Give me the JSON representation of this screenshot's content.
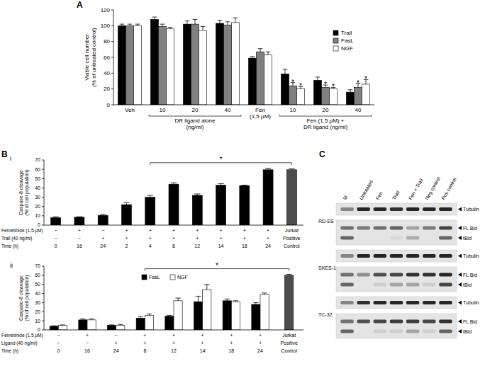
{
  "chart_data": [
    {
      "type": "bar",
      "panel": "A",
      "y_label": "Viable cell number\n(% of untreated control)",
      "categories": [
        "Veh",
        "10",
        "20",
        "40",
        "Fen\n(1.5 μM)",
        "10",
        "20",
        "40"
      ],
      "groups": [
        {
          "label": "DR ligand alone\n(ng/ml)",
          "from": 1,
          "to": 3
        },
        {
          "label": "Fen (1.5 μM) +\nDR ligand (ng/ml)",
          "from": 5,
          "to": 7
        }
      ],
      "series": [
        {
          "name": "Trail",
          "color": "#000000",
          "values": [
            100,
            108,
            102,
            103,
            59,
            39,
            31,
            16
          ],
          "errors": [
            2,
            3,
            4,
            4,
            2,
            6,
            4,
            3
          ]
        },
        {
          "name": "FasL",
          "color": "#808080",
          "values": [
            100,
            99,
            102,
            101,
            67,
            24,
            22,
            22
          ],
          "errors": [
            2,
            3,
            6,
            4,
            4,
            4,
            3,
            5
          ]
        },
        {
          "name": "NGF",
          "color": "#ffffff",
          "values": [
            100,
            96,
            94,
            104,
            63,
            20,
            20,
            26
          ],
          "errors": [
            2,
            2,
            5,
            6,
            4,
            3,
            2,
            6
          ]
        }
      ],
      "annotations": [
        {
          "text": "*",
          "category": 5,
          "series": 1
        },
        {
          "text": "*",
          "category": 5,
          "series": 2
        },
        {
          "text": "*",
          "category": 6,
          "series": 1
        },
        {
          "text": "*",
          "category": 6,
          "series": 2
        },
        {
          "text": "*",
          "category": 7,
          "series": 1
        },
        {
          "text": "*",
          "category": 7,
          "series": 2
        }
      ],
      "ylim": [
        0,
        120
      ],
      "yticks": [
        0,
        20,
        40,
        60,
        80,
        100,
        120
      ],
      "legend": "top-right"
    },
    {
      "type": "bar",
      "panel": "B",
      "subpanel": "i",
      "y_label": "Caspase-8 cleavage\n(% of cell population)",
      "values": [
        8,
        8.5,
        10.5,
        22,
        30,
        44,
        32,
        43,
        42.5,
        59.5,
        59.5
      ],
      "errors": [
        1,
        0.5,
        1,
        2,
        2,
        1.5,
        1.5,
        1.5,
        0.5,
        1.5,
        1
      ],
      "colors": [
        "#000000",
        "#000000",
        "#000000",
        "#000000",
        "#000000",
        "#000000",
        "#000000",
        "#000000",
        "#000000",
        "#000000",
        "#4d4d4d"
      ],
      "rows": [
        {
          "label": "Fenretinide (1.5 μM)",
          "cells": [
            "−",
            "+",
            "−",
            "+",
            "+",
            "+",
            "+",
            "+",
            "+",
            "+",
            "Jurkat"
          ]
        },
        {
          "label": "Trail (40 ng/ml)",
          "cells": [
            "−",
            "−",
            "+",
            "+",
            "+",
            "+",
            "+",
            "+",
            "+",
            "+",
            "Positive"
          ]
        },
        {
          "label": "Time (h)",
          "cells": [
            "0",
            "16",
            "24",
            "2",
            "4",
            "8",
            "12",
            "14",
            "18",
            "24",
            "Control"
          ]
        }
      ],
      "bracket": {
        "text": "*",
        "from": 4,
        "to": 10
      },
      "ylim": [
        0,
        70
      ],
      "yticks": [
        0,
        10,
        20,
        30,
        40,
        50,
        60,
        70
      ]
    },
    {
      "type": "bar",
      "subpanel": "ii",
      "y_label": "Caspase-8 cleavage\n(% of cell population)",
      "series": [
        {
          "name": "FasL",
          "color": "#000000",
          "values": [
            4,
            11,
            5,
            13,
            15,
            31,
            32,
            28,
            null
          ],
          "errors": [
            0.5,
            1,
            0.5,
            1.5,
            1,
            6,
            2,
            2,
            null
          ]
        },
        {
          "name": "NGF",
          "color": "#ffffff",
          "values": [
            5,
            11,
            5,
            16,
            32,
            44,
            31,
            39,
            null
          ],
          "errors": [
            0.5,
            1,
            1,
            1.5,
            3,
            6,
            1,
            1.5,
            null
          ]
        }
      ],
      "control": {
        "value": 60,
        "error": 1,
        "color": "#4d4d4d"
      },
      "rows": [
        {
          "label": "Fenretinide (1.5 μM)",
          "cells": [
            "−",
            "+",
            "−",
            "+",
            "+",
            "+",
            "+",
            "+",
            "Jurkat"
          ]
        },
        {
          "label": "Ligand (40 ng/ml)",
          "cells": [
            "−",
            "−",
            "+",
            "+",
            "+",
            "+",
            "+",
            "+",
            "Positive"
          ]
        },
        {
          "label": "Time (h)",
          "cells": [
            "0",
            "16",
            "24",
            "8",
            "12",
            "14",
            "18",
            "24",
            "Control"
          ]
        }
      ],
      "bracket": {
        "text": "*",
        "from": 3,
        "to": 8
      },
      "ylim": [
        0,
        70
      ],
      "yticks": [
        0,
        10,
        20,
        30,
        40,
        50,
        60,
        70
      ],
      "legend": "top"
    }
  ],
  "panel_c": {
    "label": "C",
    "lanes": [
      "M",
      "Untreated",
      "Fen",
      "Trail",
      "Fen + Trail",
      "Neg control",
      "Pos control"
    ],
    "cell_lines": [
      {
        "name": "RD-ES",
        "blots": [
          [
            "Tubulin"
          ],
          [
            "FL Bid",
            "tBid"
          ]
        ]
      },
      {
        "name": "SKES-1",
        "blots": [
          [
            "Tubulin"
          ],
          [
            "FL Bid",
            "tBid"
          ]
        ]
      },
      {
        "name": "TC-32",
        "blots": [
          [
            "Tubulin"
          ],
          [
            "FL Bid",
            "tBid"
          ]
        ]
      }
    ]
  }
}
